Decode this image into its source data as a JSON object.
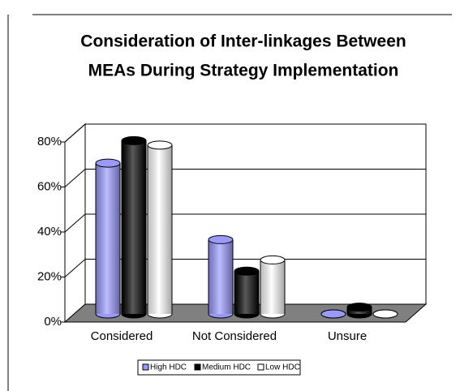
{
  "chart_data": {
    "type": "bar3d",
    "title": [
      "Consideration of Inter-linkages Between",
      "MEAs During Strategy Implementation"
    ],
    "categories": [
      "Considered",
      "Not Considered",
      "Unsure"
    ],
    "series": [
      {
        "name": "High HDC",
        "color": "#9999ff",
        "values": [
          67,
          33,
          0
        ]
      },
      {
        "name": "Medium HDC",
        "color": "#000000",
        "values": [
          77,
          19,
          3
        ]
      },
      {
        "name": "Low HDC",
        "color": "#ffffff",
        "values": [
          75,
          24,
          0
        ]
      }
    ],
    "ylim": [
      0,
      80
    ],
    "yticks": [
      {
        "value": 0,
        "label": "0%"
      },
      {
        "value": 20,
        "label": "20%"
      },
      {
        "value": 40,
        "label": "40%"
      },
      {
        "value": 60,
        "label": "60%"
      },
      {
        "value": 80,
        "label": "80%"
      }
    ],
    "grid": true,
    "legend": "bottom"
  }
}
